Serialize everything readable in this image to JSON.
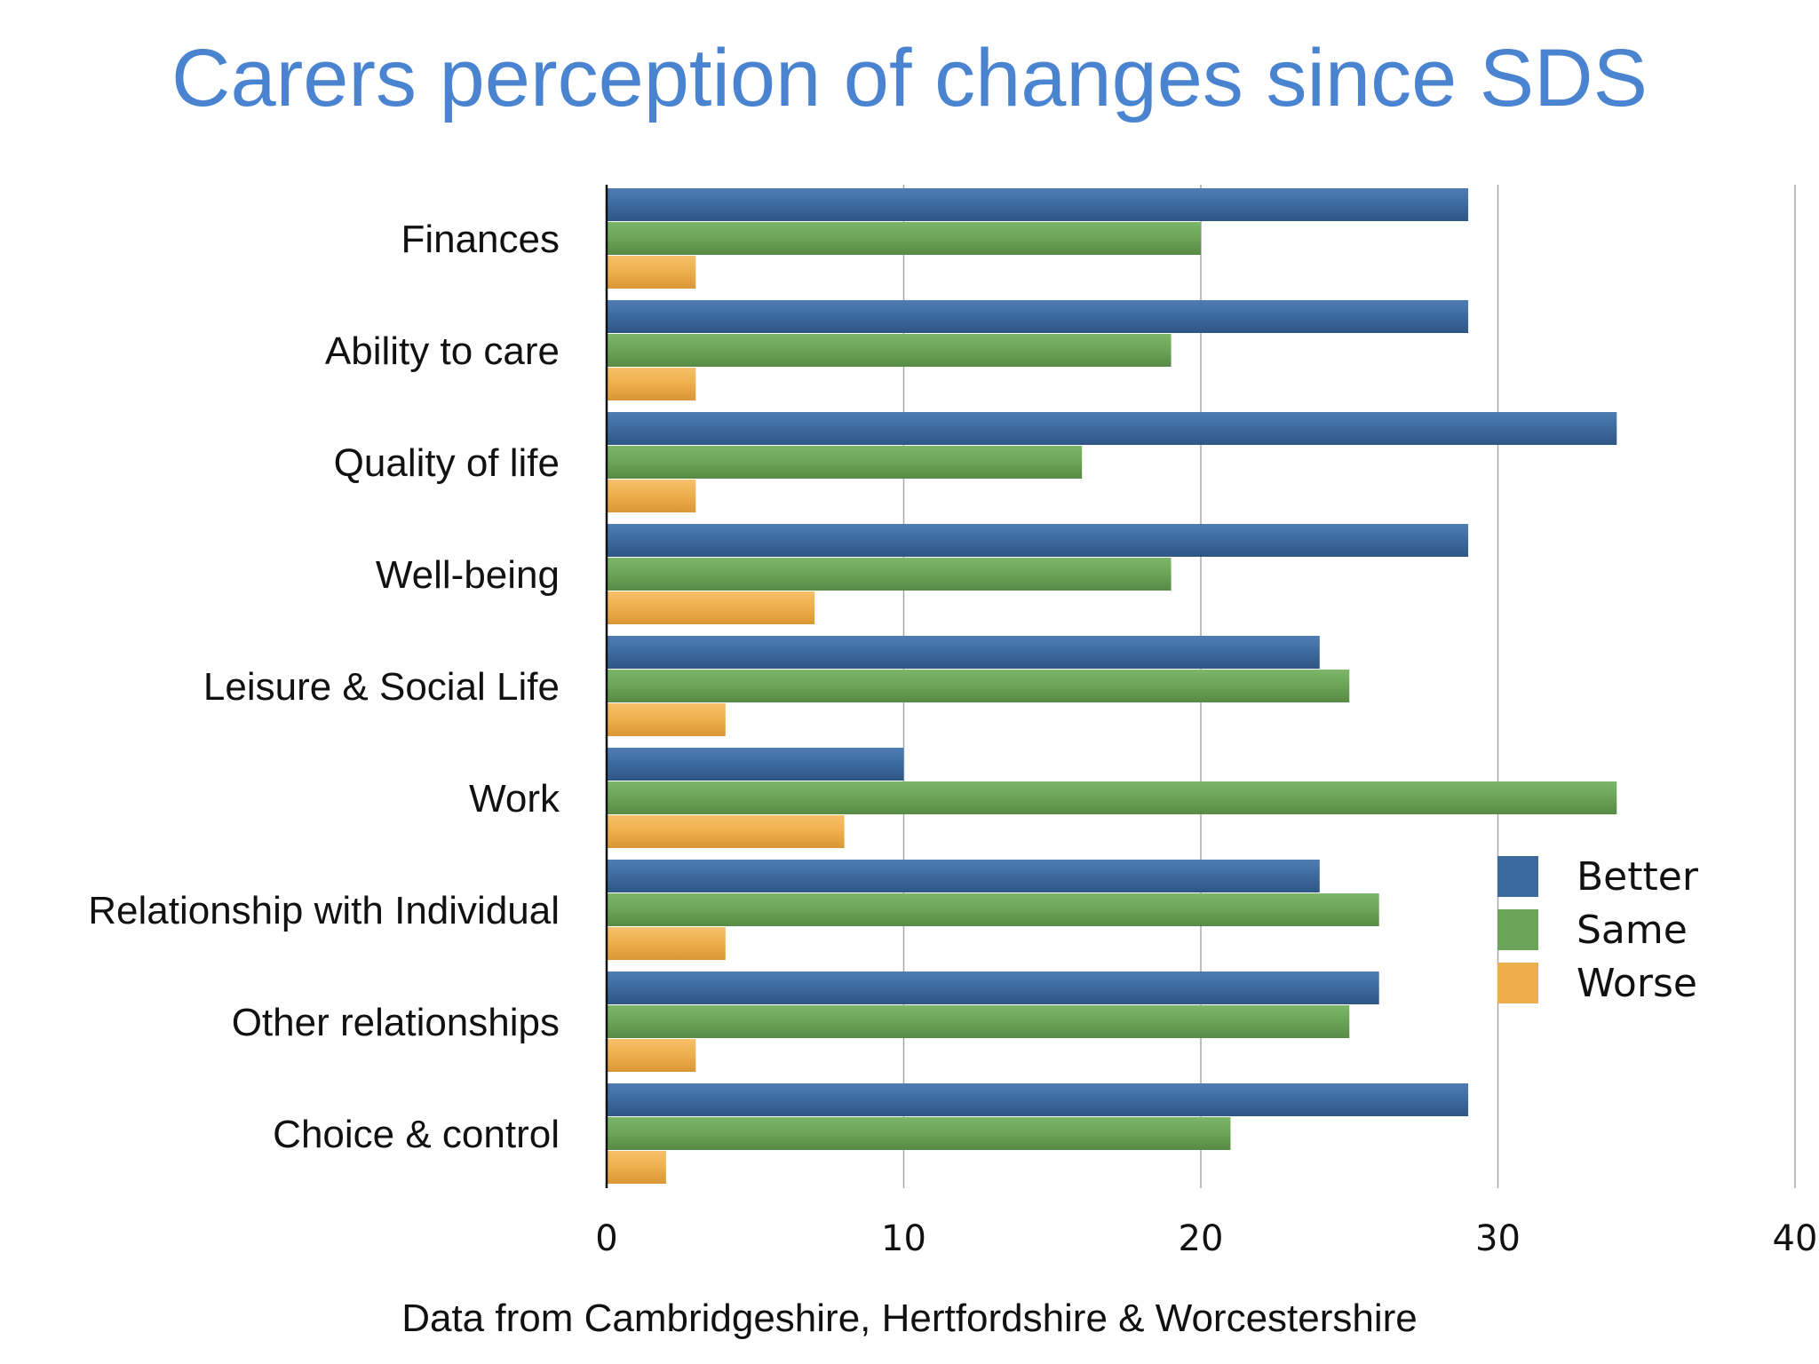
{
  "title": "Carers perception of changes since SDS",
  "footnote": "Data from Cambridgeshire, Hertfordshire & Worcestershire",
  "chart_data": {
    "type": "bar",
    "orientation": "horizontal",
    "categories": [
      "Finances",
      "Ability to care",
      "Quality of life",
      "Well-being",
      "Leisure & Social Life",
      "Work",
      "Relationship with Individual",
      "Other relationships",
      "Choice & control"
    ],
    "series": [
      {
        "name": "Better",
        "color": "#3d6a9e",
        "values": [
          29,
          29,
          34,
          29,
          24,
          10,
          24,
          26,
          29
        ]
      },
      {
        "name": "Same",
        "color": "#6ba357",
        "values": [
          20,
          19,
          16,
          19,
          25,
          34,
          26,
          25,
          21
        ]
      },
      {
        "name": "Worse",
        "color": "#eeae4c",
        "values": [
          3,
          3,
          3,
          7,
          4,
          8,
          4,
          3,
          2
        ]
      }
    ],
    "xticks": [
      "0",
      "10",
      "20",
      "30",
      "40"
    ],
    "xlim": [
      0,
      40
    ],
    "grid": "vertical",
    "legend_position": "right"
  }
}
